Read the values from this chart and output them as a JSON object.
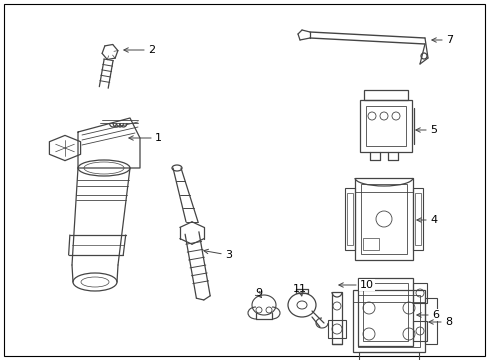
{
  "background_color": "#ffffff",
  "border_color": "#000000",
  "line_color": "#444444",
  "label_color": "#000000",
  "figsize": [
    4.89,
    3.6
  ],
  "dpi": 100,
  "font_size": 8
}
